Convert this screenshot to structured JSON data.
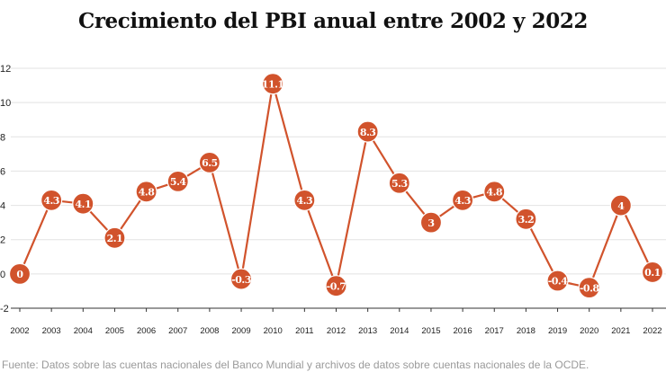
{
  "chart_data": {
    "type": "line",
    "title": "Crecimiento del PBI anual entre 2002 y 2022",
    "xlabel": "",
    "ylabel": "",
    "categories": [
      "2002",
      "2003",
      "2004",
      "2005",
      "2006",
      "2007",
      "2008",
      "2009",
      "2010",
      "2011",
      "2012",
      "2013",
      "2014",
      "2015",
      "2016",
      "2017",
      "2018",
      "2019",
      "2020",
      "2021",
      "2022"
    ],
    "values": [
      0,
      4.3,
      4.1,
      2.1,
      4.8,
      5.4,
      6.5,
      -0.3,
      11.1,
      4.3,
      -0.7,
      8.3,
      5.3,
      3,
      4.3,
      4.8,
      3.2,
      -0.4,
      -0.8,
      4,
      0.1
    ],
    "labels": [
      "0",
      "4.3",
      "4.1",
      "2.1",
      "4.8",
      "5.4",
      "6.5",
      "-0.3",
      "11.1",
      "4.3",
      "-0.7",
      "8.3",
      "5.3",
      "3",
      "4.3",
      "4.8",
      "3.2",
      "-0.4",
      "-0.8",
      "4",
      "0.1"
    ],
    "yticks": [
      -2,
      0,
      2,
      4,
      6,
      8,
      10,
      12
    ],
    "ylim": [
      -2,
      12
    ],
    "grid": true,
    "legend": "none",
    "colors": {
      "line": "#d1532c",
      "marker": "#d1532c",
      "marker_text": "#ffffff",
      "grid": "#e2e2e2",
      "axis": "#333333"
    }
  },
  "source": "Fuente: Datos sobre las cuentas nacionales del Banco Mundial y archivos de datos sobre cuentas nacionales de la OCDE."
}
